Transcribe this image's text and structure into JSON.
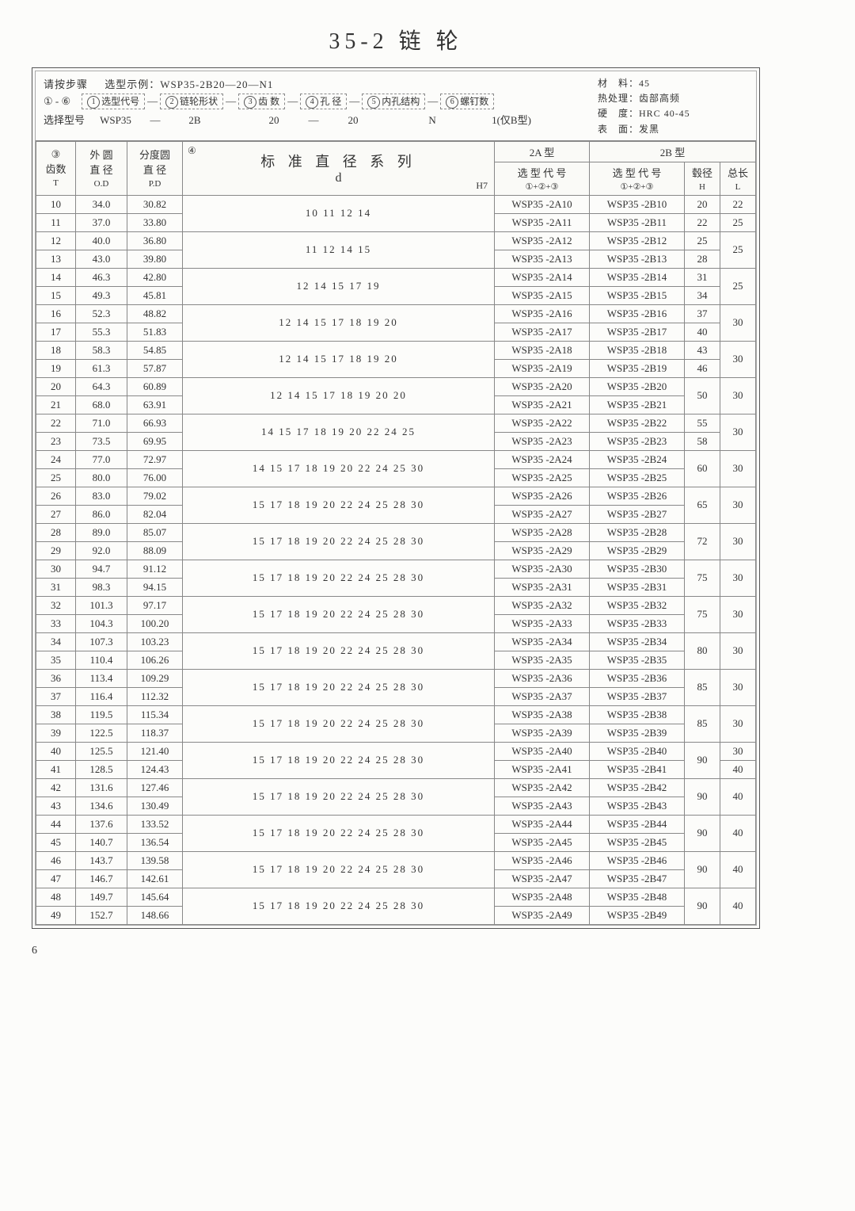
{
  "title": "35-2  链  轮",
  "pageNumber": "6",
  "header": {
    "step_label": "请按步骤",
    "example_label": "选型示例：WSP35-2B20—20—N1",
    "range": "① - ⑥",
    "select_label": "选择型号",
    "circles": [
      "1",
      "2",
      "3",
      "4",
      "5",
      "6"
    ],
    "box_labels": [
      "选型代号",
      "链轮形状",
      "齿 数",
      "孔 径",
      "内孔结构",
      "螺钉数"
    ],
    "row3_values": [
      "WSP35",
      "—",
      "2B",
      "",
      "20",
      "—",
      "20",
      "",
      "N",
      "",
      "1(仅B型)"
    ],
    "material": {
      "l1a": "材　料：",
      "l1b": "45",
      "l2a": "热处理：",
      "l2b": "齿部高频",
      "l3a": "硬　度：",
      "l3b": "HRC 40-45",
      "l4a": "表　面：",
      "l4b": "发黑"
    }
  },
  "col_headers": {
    "c3_circ": "③",
    "teeth": "齿数",
    "teeth_sub": "T",
    "od": "外 圆",
    "od2": "直 径",
    "od_sub": "O.D",
    "pd": "分度圆",
    "pd2": "直 径",
    "pd_sub": "P.D",
    "c4_circ": "④",
    "std_diam": "标 准 直 径 系 列",
    "d": "d",
    "h7": "H7",
    "type2a": "2A 型",
    "type2b": "2B 型",
    "selcode": "选 型 代 号",
    "selcode_sub": "①+②+③",
    "hub": "毂径",
    "hub_sub": "H",
    "len": "总长",
    "len_sub": "L"
  },
  "groups": [
    {
      "diam": "10  11  12  14",
      "hub": "20 22",
      "len": "22 25",
      "rows": [
        {
          "t": "10",
          "od": "34.0",
          "pd": "30.82",
          "a": "WSP35 -2A10",
          "b": "WSP35 -2B10",
          "h": "20",
          "l": "22"
        },
        {
          "t": "11",
          "od": "37.0",
          "pd": "33.80",
          "a": "WSP35 -2A11",
          "b": "WSP35 -2B11",
          "h": "22",
          "l": "25"
        }
      ]
    },
    {
      "diam": "11  12  14  15",
      "rows": [
        {
          "t": "12",
          "od": "40.0",
          "pd": "36.80",
          "a": "WSP35 -2A12",
          "b": "WSP35 -2B12",
          "h": "25",
          "l": "25",
          "lspan": 2
        },
        {
          "t": "13",
          "od": "43.0",
          "pd": "39.80",
          "a": "WSP35 -2A13",
          "b": "WSP35 -2B13",
          "h": "28"
        }
      ]
    },
    {
      "diam": "12  14  15  17  19",
      "rows": [
        {
          "t": "14",
          "od": "46.3",
          "pd": "42.80",
          "a": "WSP35 -2A14",
          "b": "WSP35 -2B14",
          "h": "31",
          "l": "25",
          "lspan": 2
        },
        {
          "t": "15",
          "od": "49.3",
          "pd": "45.81",
          "a": "WSP35 -2A15",
          "b": "WSP35 -2B15",
          "h": "34"
        }
      ]
    },
    {
      "diam": "12  14  15  17  18  19  20",
      "rows": [
        {
          "t": "16",
          "od": "52.3",
          "pd": "48.82",
          "a": "WSP35 -2A16",
          "b": "WSP35 -2B16",
          "h": "37",
          "l": "30",
          "lspan": 2
        },
        {
          "t": "17",
          "od": "55.3",
          "pd": "51.83",
          "a": "WSP35 -2A17",
          "b": "WSP35 -2B17",
          "h": "40"
        }
      ]
    },
    {
      "diam": "12  14  15  17  18  19  20",
      "rows": [
        {
          "t": "18",
          "od": "58.3",
          "pd": "54.85",
          "a": "WSP35 -2A18",
          "b": "WSP35 -2B18",
          "h": "43",
          "l": "30",
          "lspan": 2
        },
        {
          "t": "19",
          "od": "61.3",
          "pd": "57.87",
          "a": "WSP35 -2A19",
          "b": "WSP35 -2B19",
          "h": "46"
        }
      ]
    },
    {
      "diam": "12  14  15  17  18  19  20  20",
      "rows": [
        {
          "t": "20",
          "od": "64.3",
          "pd": "60.89",
          "a": "WSP35 -2A20",
          "b": "WSP35 -2B20",
          "h": "50",
          "hspan": 2,
          "l": "30",
          "lspan": 2
        },
        {
          "t": "21",
          "od": "68.0",
          "pd": "63.91",
          "a": "WSP35 -2A21",
          "b": "WSP35 -2B21"
        }
      ]
    },
    {
      "diam": "14  15  17  18  19  20  22  24  25",
      "rows": [
        {
          "t": "22",
          "od": "71.0",
          "pd": "66.93",
          "a": "WSP35 -2A22",
          "b": "WSP35 -2B22",
          "h": "55",
          "l": "30",
          "lspan": 2
        },
        {
          "t": "23",
          "od": "73.5",
          "pd": "69.95",
          "a": "WSP35 -2A23",
          "b": "WSP35 -2B23",
          "h": "58"
        }
      ]
    },
    {
      "diam": "14  15  17  18  19  20  22  24  25  30",
      "rows": [
        {
          "t": "24",
          "od": "77.0",
          "pd": "72.97",
          "a": "WSP35 -2A24",
          "b": "WSP35 -2B24",
          "h": "60",
          "hspan": 2,
          "l": "30",
          "lspan": 2
        },
        {
          "t": "25",
          "od": "80.0",
          "pd": "76.00",
          "a": "WSP35 -2A25",
          "b": "WSP35 -2B25"
        }
      ]
    },
    {
      "diam": "15  17  18  19  20  22  24  25  28  30",
      "rows": [
        {
          "t": "26",
          "od": "83.0",
          "pd": "79.02",
          "a": "WSP35 -2A26",
          "b": "WSP35 -2B26",
          "h": "65",
          "hspan": 2,
          "l": "30",
          "lspan": 2
        },
        {
          "t": "27",
          "od": "86.0",
          "pd": "82.04",
          "a": "WSP35 -2A27",
          "b": "WSP35 -2B27"
        }
      ]
    },
    {
      "diam": "15  17  18  19  20  22  24  25  28  30",
      "rows": [
        {
          "t": "28",
          "od": "89.0",
          "pd": "85.07",
          "a": "WSP35 -2A28",
          "b": "WSP35 -2B28",
          "h": "72",
          "hspan": 2,
          "l": "30",
          "lspan": 2
        },
        {
          "t": "29",
          "od": "92.0",
          "pd": "88.09",
          "a": "WSP35 -2A29",
          "b": "WSP35 -2B29"
        }
      ]
    },
    {
      "diam": "15  17  18  19  20  22  24  25  28  30",
      "rows": [
        {
          "t": "30",
          "od": "94.7",
          "pd": "91.12",
          "a": "WSP35 -2A30",
          "b": "WSP35 -2B30",
          "h": "75",
          "hspan": 2,
          "l": "30",
          "lspan": 2
        },
        {
          "t": "31",
          "od": "98.3",
          "pd": "94.15",
          "a": "WSP35 -2A31",
          "b": "WSP35 -2B31"
        }
      ]
    },
    {
      "diam": "15  17  18  19  20  22  24  25  28  30",
      "rows": [
        {
          "t": "32",
          "od": "101.3",
          "pd": "97.17",
          "a": "WSP35 -2A32",
          "b": "WSP35 -2B32",
          "h": "75",
          "hspan": 2,
          "l": "30",
          "lspan": 2
        },
        {
          "t": "33",
          "od": "104.3",
          "pd": "100.20",
          "a": "WSP35 -2A33",
          "b": "WSP35 -2B33"
        }
      ]
    },
    {
      "diam": "15  17  18  19  20  22  24  25  28  30",
      "rows": [
        {
          "t": "34",
          "od": "107.3",
          "pd": "103.23",
          "a": "WSP35 -2A34",
          "b": "WSP35 -2B34",
          "h": "80",
          "hspan": 2,
          "l": "30",
          "lspan": 2
        },
        {
          "t": "35",
          "od": "110.4",
          "pd": "106.26",
          "a": "WSP35 -2A35",
          "b": "WSP35 -2B35"
        }
      ]
    },
    {
      "diam": "15  17  18  19  20  22  24  25  28  30",
      "rows": [
        {
          "t": "36",
          "od": "113.4",
          "pd": "109.29",
          "a": "WSP35 -2A36",
          "b": "WSP35 -2B36",
          "h": "85",
          "hspan": 2,
          "l": "30",
          "lspan": 2
        },
        {
          "t": "37",
          "od": "116.4",
          "pd": "112.32",
          "a": "WSP35 -2A37",
          "b": "WSP35 -2B37"
        }
      ]
    },
    {
      "diam": "15  17  18  19  20  22  24  25  28  30",
      "rows": [
        {
          "t": "38",
          "od": "119.5",
          "pd": "115.34",
          "a": "WSP35 -2A38",
          "b": "WSP35 -2B38",
          "h": "85",
          "hspan": 2,
          "l": "30",
          "lspan": 2
        },
        {
          "t": "39",
          "od": "122.5",
          "pd": "118.37",
          "a": "WSP35 -2A39",
          "b": "WSP35 -2B39"
        }
      ]
    },
    {
      "diam": "15  17  18  19  20  22  24  25  28  30",
      "rows": [
        {
          "t": "40",
          "od": "125.5",
          "pd": "121.40",
          "a": "WSP35 -2A40",
          "b": "WSP35 -2B40",
          "h": "90",
          "hspan": 2,
          "l": "30"
        },
        {
          "t": "41",
          "od": "128.5",
          "pd": "124.43",
          "a": "WSP35 -2A41",
          "b": "WSP35 -2B41",
          "l": "40"
        }
      ]
    },
    {
      "diam": "15  17  18  19  20  22  24  25  28  30",
      "rows": [
        {
          "t": "42",
          "od": "131.6",
          "pd": "127.46",
          "a": "WSP35 -2A42",
          "b": "WSP35 -2B42",
          "h": "90",
          "hspan": 2,
          "l": "40",
          "lspan": 2
        },
        {
          "t": "43",
          "od": "134.6",
          "pd": "130.49",
          "a": "WSP35 -2A43",
          "b": "WSP35 -2B43"
        }
      ]
    },
    {
      "diam": "15  17  18  19  20  22  24  25  28  30",
      "rows": [
        {
          "t": "44",
          "od": "137.6",
          "pd": "133.52",
          "a": "WSP35 -2A44",
          "b": "WSP35 -2B44",
          "h": "90",
          "hspan": 2,
          "l": "40",
          "lspan": 2
        },
        {
          "t": "45",
          "od": "140.7",
          "pd": "136.54",
          "a": "WSP35 -2A45",
          "b": "WSP35 -2B45"
        }
      ]
    },
    {
      "diam": "15  17  18  19  20  22  24  25  28  30",
      "rows": [
        {
          "t": "46",
          "od": "143.7",
          "pd": "139.58",
          "a": "WSP35 -2A46",
          "b": "WSP35 -2B46",
          "h": "90",
          "hspan": 2,
          "l": "40",
          "lspan": 2
        },
        {
          "t": "47",
          "od": "146.7",
          "pd": "142.61",
          "a": "WSP35 -2A47",
          "b": "WSP35 -2B47"
        }
      ]
    },
    {
      "diam": "15  17  18  19  20  22  24  25  28  30",
      "rows": [
        {
          "t": "48",
          "od": "149.7",
          "pd": "145.64",
          "a": "WSP35 -2A48",
          "b": "WSP35 -2B48",
          "h": "90",
          "hspan": 2,
          "l": "40",
          "lspan": 2
        },
        {
          "t": "49",
          "od": "152.7",
          "pd": "148.66",
          "a": "WSP35 -2A49",
          "b": "WSP35 -2B49"
        }
      ]
    }
  ]
}
